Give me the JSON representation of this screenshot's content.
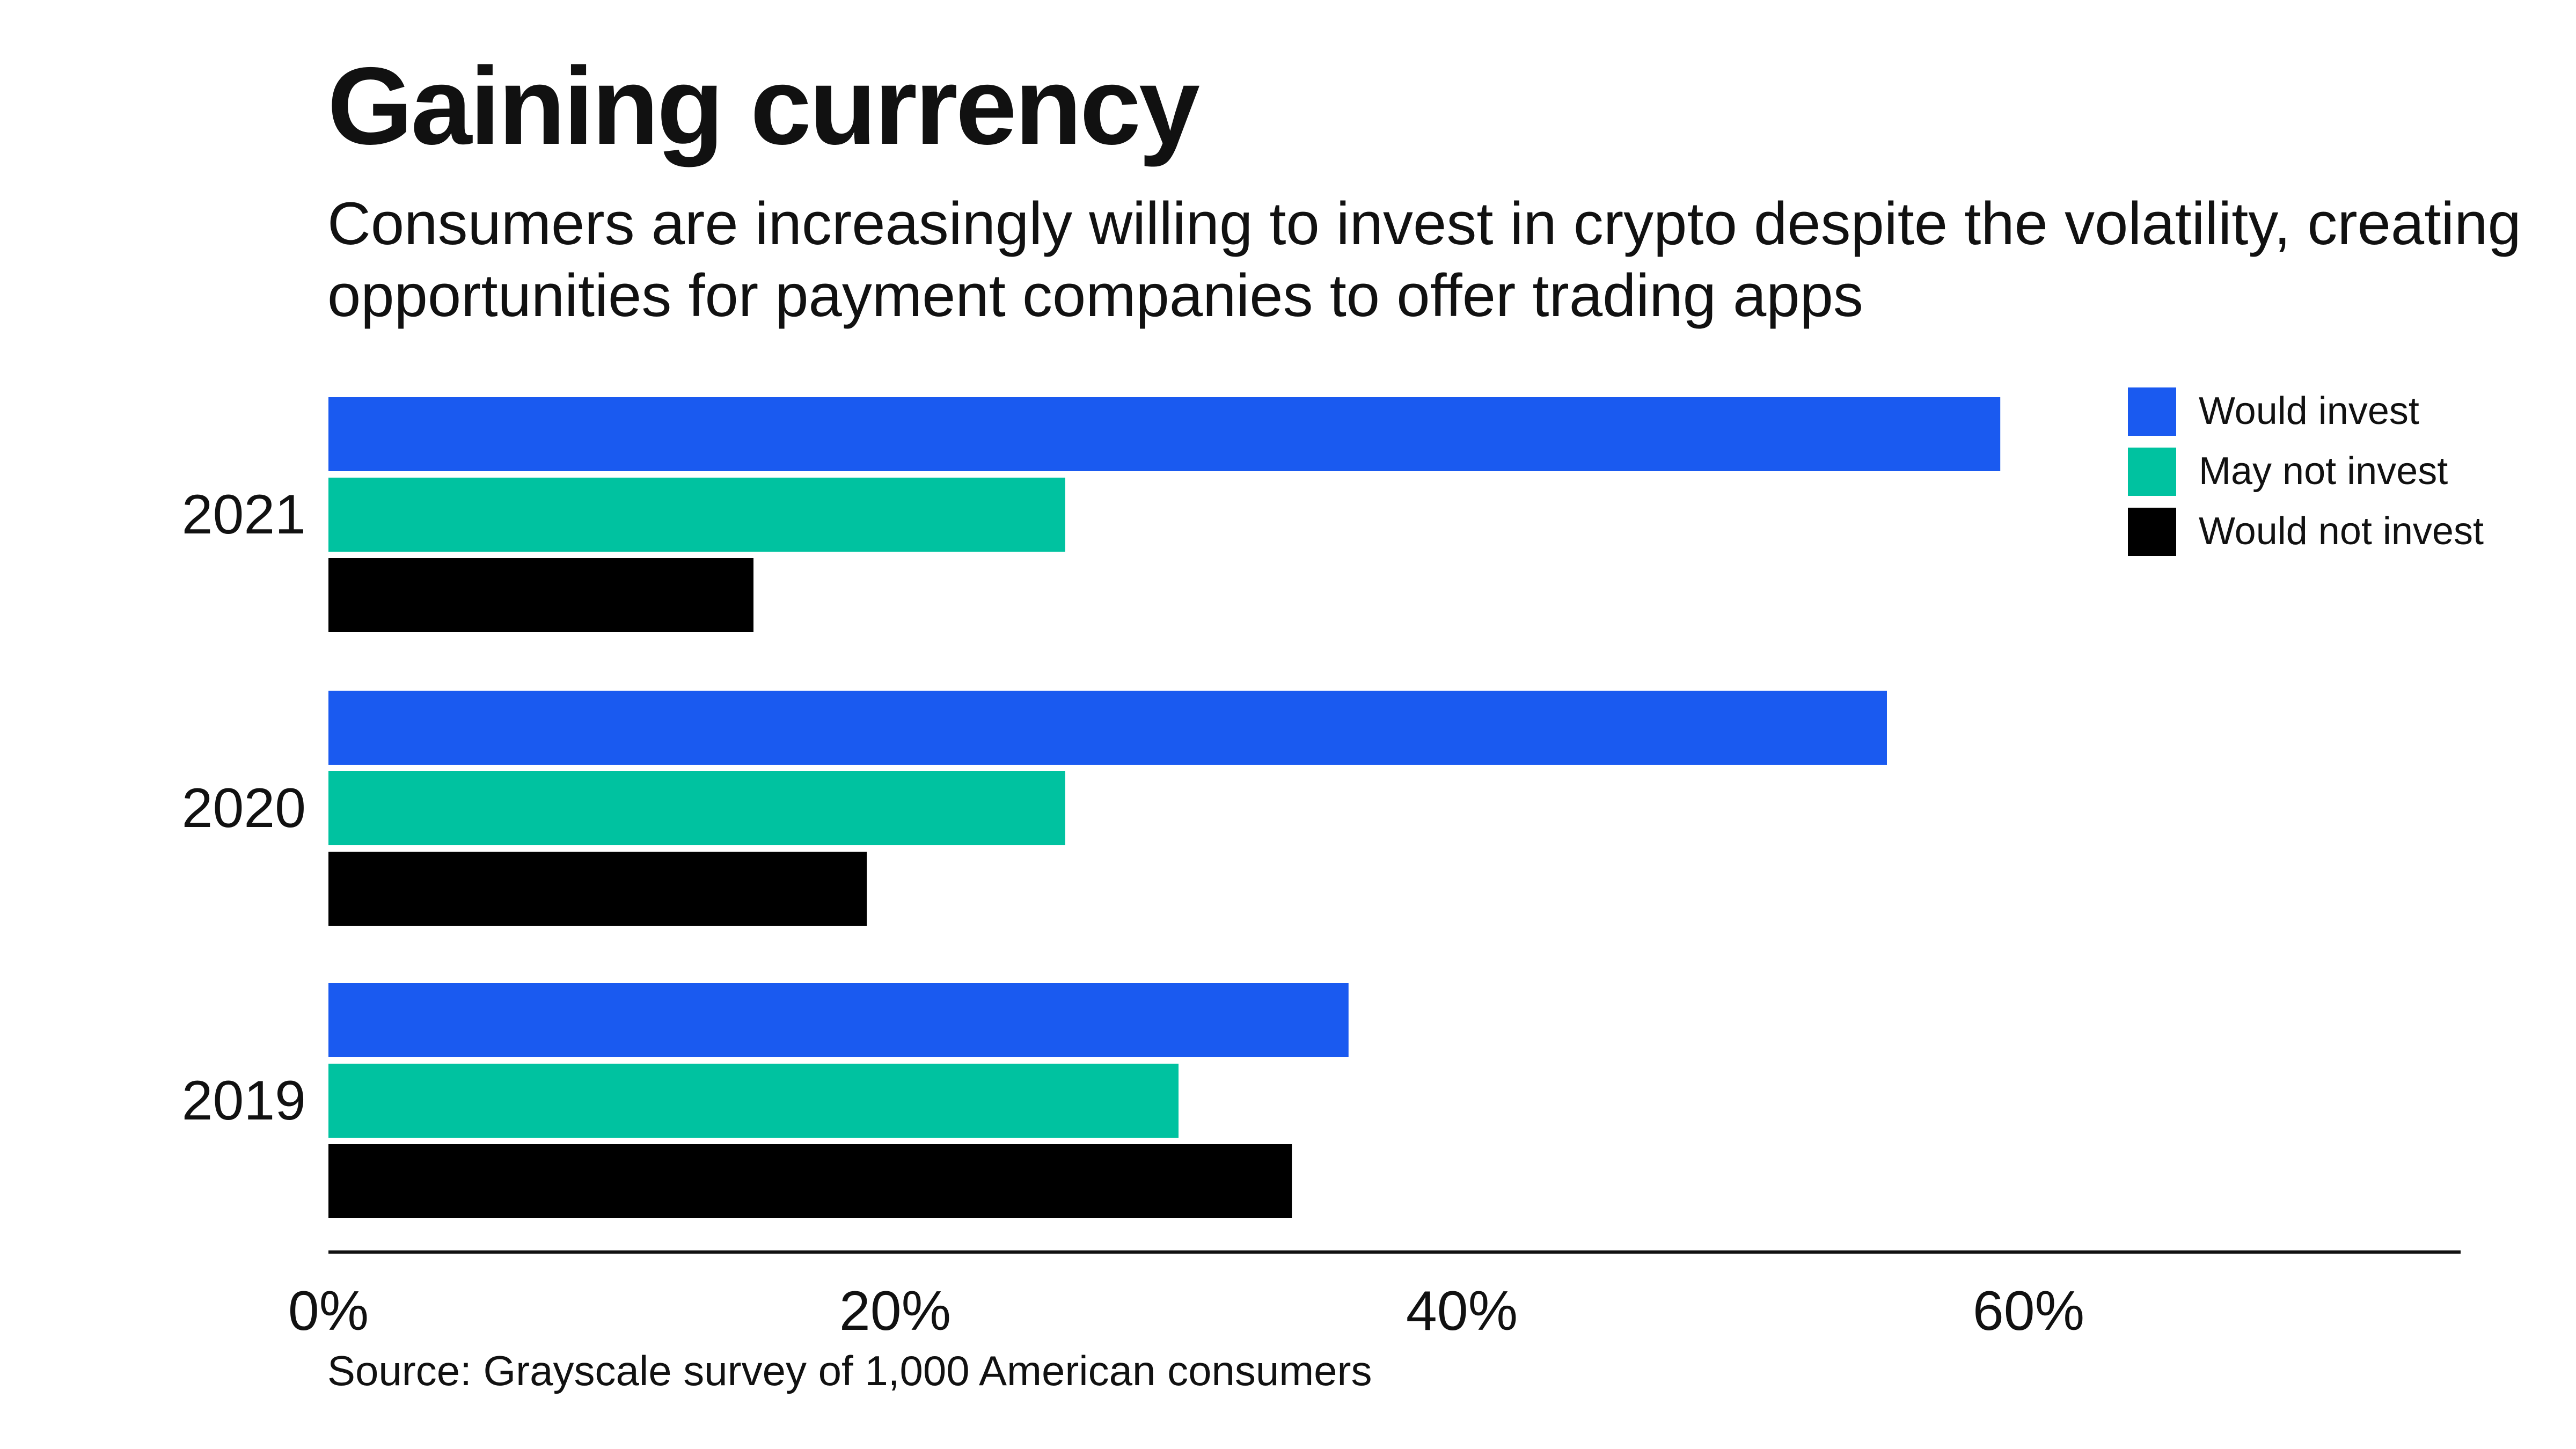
{
  "title": "Gaining currency",
  "subtitle": "Consumers are increasingly willing to invest in crypto despite the volatility, creating opportunities for payment companies to offer trading apps",
  "source": "Source: Grayscale survey of 1,000 American consumers",
  "colors": {
    "would_invest": "#1a5af0",
    "may_not_invest": "#00c2a0",
    "would_not_invest": "#000000",
    "axis": "#111111"
  },
  "chart_data": {
    "type": "bar",
    "orientation": "horizontal",
    "title": "Gaining currency",
    "categories": [
      "2021",
      "2020",
      "2019"
    ],
    "series": [
      {
        "name": "Would invest",
        "values": [
          59,
          55,
          36
        ]
      },
      {
        "name": "May not invest",
        "values": [
          26,
          26,
          30
        ]
      },
      {
        "name": "Would not invest",
        "values": [
          15,
          19,
          34
        ]
      }
    ],
    "xlabel": "",
    "ylabel": "",
    "xlim": [
      0,
      75
    ],
    "xticks": [
      0,
      20,
      40,
      60
    ],
    "xtick_labels": [
      "0%",
      "20%",
      "40%",
      "60%"
    ],
    "grid": false,
    "legend_position": "top-right"
  }
}
